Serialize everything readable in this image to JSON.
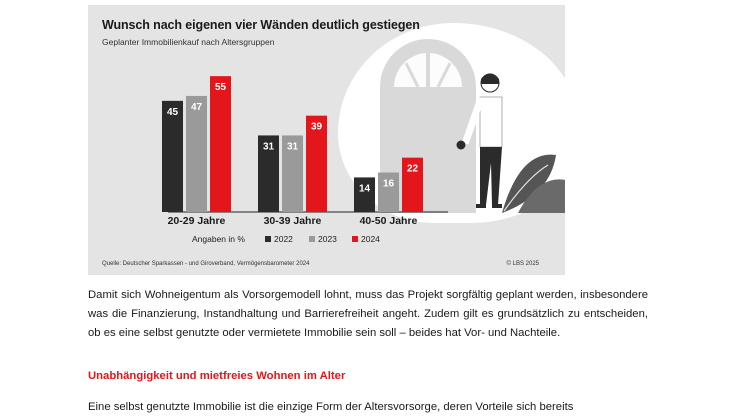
{
  "figure": {
    "title": "Wunsch nach eigenen vier Wänden deutlich gestiegen",
    "subtitle": "Geplanter Immobilienkauf nach Altersgruppen",
    "legend_title": "Angaben in %",
    "source": "Quelle: Deutscher Sparkassen - und Giroverband, Vermögensbarometer 2024",
    "copyright": "© LBS 2025"
  },
  "chart_data": {
    "type": "bar",
    "title": "Wunsch nach eigenen vier Wänden deutlich gestiegen",
    "subtitle": "Geplanter Immobilienkauf nach Altersgruppen",
    "categories": [
      "20-29 Jahre",
      "30-39 Jahre",
      "40-50 Jahre"
    ],
    "series": [
      {
        "name": "2022",
        "values": [
          45,
          31,
          14
        ],
        "color": "#2b2b2b"
      },
      {
        "name": "2023",
        "values": [
          47,
          31,
          16
        ],
        "color": "#9a9a9a"
      },
      {
        "name": "2024",
        "values": [
          55,
          39,
          22
        ],
        "color": "#e3161b"
      }
    ],
    "ylim": [
      0,
      55
    ],
    "unit": "Angaben in %",
    "grid": false,
    "legend": "bottom"
  },
  "text": {
    "paragraph_1": "Damit sich Wohneigentum als Vorsorgemodell lohnt, muss das Projekt sorgfältig geplant werden, insbesondere was die Finanzierung, Instandhaltung und Barrierefreiheit angeht. Zudem gilt es grundsätzlich zu entscheiden, ob es eine selbst genutzte oder vermietete Immobilie sein soll – beides hat Vor- und Nachteile.",
    "heading": "Unabhängigkeit und mietfreies Wohnen im Alter",
    "paragraph_2": "Eine selbst genutzte Immobilie ist die einzige Form der Altersvorsorge, deren Vorteile sich bereits"
  },
  "illustration": {
    "icons": [
      "door-icon",
      "person-icon",
      "plant-icon"
    ]
  }
}
